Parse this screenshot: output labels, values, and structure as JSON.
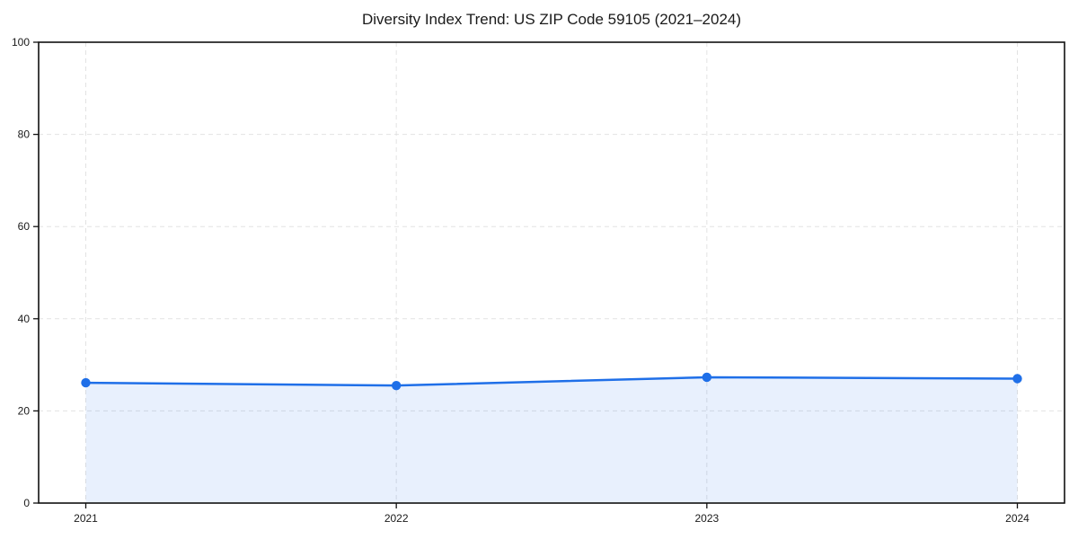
{
  "chart_data": {
    "type": "area",
    "title": "Diversity Index Trend: US ZIP Code 59105 (2021–2024)",
    "categories": [
      "2021",
      "2022",
      "2023",
      "2024"
    ],
    "series": [
      {
        "name": "Diversity Index",
        "values": [
          26.1,
          25.5,
          27.3,
          27.0
        ]
      }
    ],
    "xlabel": "",
    "ylabel": "",
    "ylim": [
      0,
      100
    ],
    "yticks": [
      0,
      20,
      40,
      60,
      80,
      100
    ],
    "grid": "dashed-both-axes",
    "legend_position": "none",
    "marker": "circle",
    "area_fill_span": "first-to-last-point",
    "colors": {
      "line": "#1f6fe8",
      "marker": "#1f6fe8",
      "fill": "rgba(31,111,232,0.10)",
      "grid": "#e2e2e2",
      "axis": "#111111",
      "text": "#1a1a1a",
      "background": "#ffffff"
    }
  }
}
